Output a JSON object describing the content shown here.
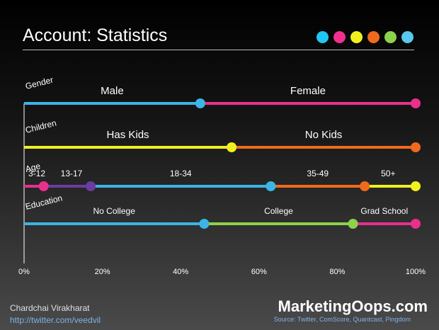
{
  "title": "Account: Statistics",
  "palette": [
    "#1ec8f0",
    "#f0308c",
    "#f0f020",
    "#f06a1e",
    "#8cd24a",
    "#58c8ee"
  ],
  "chart_data": {
    "type": "segmented-bar",
    "xlim": [
      0,
      100
    ],
    "x_ticks": [
      "0%",
      "20%",
      "40%",
      "60%",
      "80%",
      "100%"
    ],
    "rows": [
      {
        "label": "Gender",
        "segments": [
          {
            "name": "Male",
            "start": 0,
            "end": 45,
            "color": "#3cb4e6"
          },
          {
            "name": "Female",
            "start": 45,
            "end": 100,
            "color": "#e8308c"
          }
        ]
      },
      {
        "label": "Children",
        "segments": [
          {
            "name": "Has Kids",
            "start": 0,
            "end": 53,
            "color": "#f0f020"
          },
          {
            "name": "No Kids",
            "start": 53,
            "end": 100,
            "color": "#f06a1e"
          }
        ]
      },
      {
        "label": "Age",
        "segments": [
          {
            "name": "3-12",
            "start": 0,
            "end": 5,
            "color": "#e8308c"
          },
          {
            "name": "13-17",
            "start": 5,
            "end": 17,
            "color": "#6a3ca0"
          },
          {
            "name": "18-34",
            "start": 17,
            "end": 63,
            "color": "#3cb4e6"
          },
          {
            "name": "35-49",
            "start": 63,
            "end": 87,
            "color": "#f06a1e"
          },
          {
            "name": "50+",
            "start": 87,
            "end": 100,
            "color": "#f0f020"
          }
        ]
      },
      {
        "label": "Education",
        "segments": [
          {
            "name": "No College",
            "start": 0,
            "end": 46,
            "color": "#3cb4e6"
          },
          {
            "name": "College",
            "start": 46,
            "end": 84,
            "color": "#8cd24a"
          },
          {
            "name": "Grad School",
            "start": 84,
            "end": 100,
            "color": "#e8308c"
          }
        ]
      }
    ]
  },
  "footer": {
    "author": "Chardchai Virakharat",
    "link": "http://twitter.com/veedvil",
    "brand": "MarketingOops.com",
    "source": "Source: Twitter, ComScore, Quantcast, Pingdom"
  }
}
